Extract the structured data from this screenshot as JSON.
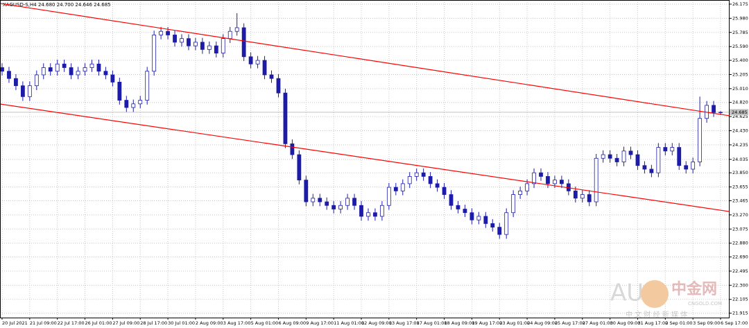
{
  "chart_data": {
    "type": "candlestick",
    "title": "XAGUSD-S,H4  24.680 24.700 24.646 24.685",
    "categories": [
      "20 Jul 2021",
      null,
      null,
      null,
      "21 Jul 09:00",
      null,
      null,
      null,
      "22 Jul 17:00",
      null,
      null,
      null,
      "26 Jul 01:00",
      null,
      null,
      null,
      "27 Jul 09:00",
      null,
      null,
      null,
      "28 Jul 17:00",
      null,
      null,
      null,
      "30 Jul 01:00",
      null,
      null,
      null,
      "2 Aug 09:00",
      null,
      null,
      null,
      "3 Aug 17:00",
      null,
      null,
      null,
      "5 Aug 01:00",
      null,
      null,
      null,
      "6 Aug 09:00",
      null,
      null,
      null,
      "9 Aug 17:00",
      null,
      null,
      null,
      "11 Aug 01:00",
      null,
      null,
      null,
      "12 Aug 09:00",
      null,
      null,
      null,
      "13 Aug 17:00",
      null,
      null,
      null,
      "17 Aug 01:00",
      null,
      null,
      null,
      "18 Aug 09:00",
      null,
      null,
      null,
      "19 Aug 17:00",
      null,
      null,
      null,
      "23 Aug 01:00",
      null,
      null,
      null,
      "24 Aug 09:00",
      null,
      null,
      null,
      "25 Aug 17:00",
      null,
      null,
      null,
      "27 Aug 01:00",
      null,
      null,
      null,
      "30 Aug 09:00",
      null,
      null,
      null,
      "31 Aug 17:00",
      null,
      null,
      null,
      "2 Sep 01:00",
      null,
      null,
      null,
      "3 Sep 09:00",
      null,
      null,
      null,
      "6 Sep 17:00"
    ],
    "open": [
      25.3,
      25.25,
      25.15,
      25.05,
      24.9,
      25.05,
      25.2,
      25.3,
      25.25,
      25.35,
      25.3,
      25.2,
      25.25,
      25.3,
      25.35,
      25.25,
      25.2,
      25.1,
      24.85,
      24.75,
      24.8,
      24.85,
      25.25,
      25.75,
      25.8,
      25.75,
      25.65,
      25.7,
      25.6,
      25.65,
      25.55,
      25.6,
      25.5,
      25.7,
      25.8,
      25.85,
      25.45,
      25.35,
      25.4,
      25.2,
      25.15,
      24.95,
      24.25,
      24.1,
      23.75,
      23.45,
      23.5,
      23.45,
      23.4,
      23.35,
      23.4,
      23.5,
      23.4,
      23.25,
      23.3,
      23.25,
      23.4,
      23.65,
      23.6,
      23.7,
      23.8,
      23.85,
      23.8,
      23.7,
      23.65,
      23.55,
      23.4,
      23.35,
      23.3,
      23.2,
      23.25,
      23.15,
      23.1,
      23.0,
      23.3,
      23.55,
      23.6,
      23.7,
      23.85,
      23.8,
      23.7,
      23.75,
      23.7,
      23.6,
      23.5,
      23.55,
      23.45,
      24.05,
      24.1,
      24.05,
      24.0,
      24.15,
      24.1,
      23.95,
      23.9,
      23.85,
      24.2,
      24.15,
      24.2,
      23.95,
      23.9,
      24.0,
      24.6,
      24.78,
      24.68
    ],
    "high": [
      25.36,
      25.31,
      25.21,
      25.11,
      25.11,
      25.26,
      25.36,
      25.36,
      25.41,
      25.41,
      25.36,
      25.31,
      25.36,
      25.41,
      25.41,
      25.31,
      25.26,
      25.16,
      24.91,
      24.86,
      24.91,
      25.31,
      25.81,
      25.86,
      25.86,
      25.81,
      25.76,
      25.76,
      25.71,
      25.71,
      25.66,
      25.66,
      25.76,
      25.86,
      26.05,
      25.91,
      25.51,
      25.46,
      25.46,
      25.26,
      25.21,
      25.01,
      24.31,
      24.16,
      23.81,
      23.56,
      23.56,
      23.51,
      23.46,
      23.46,
      23.56,
      23.56,
      23.46,
      23.36,
      23.36,
      23.46,
      23.71,
      23.71,
      23.76,
      23.86,
      23.91,
      23.91,
      23.86,
      23.76,
      23.71,
      23.61,
      23.46,
      23.41,
      23.36,
      23.31,
      23.31,
      23.21,
      23.16,
      23.36,
      23.61,
      23.66,
      23.76,
      23.91,
      23.91,
      23.86,
      23.81,
      23.81,
      23.76,
      23.66,
      23.61,
      23.61,
      24.11,
      24.16,
      24.16,
      24.11,
      24.21,
      24.21,
      24.16,
      24.01,
      23.96,
      24.26,
      24.26,
      24.26,
      24.26,
      24.01,
      24.06,
      24.9,
      24.84,
      24.84,
      24.7
    ],
    "low": [
      25.19,
      25.09,
      24.99,
      24.84,
      24.84,
      24.99,
      25.14,
      25.19,
      25.19,
      25.24,
      25.14,
      25.14,
      25.19,
      25.24,
      25.19,
      25.14,
      25.04,
      24.79,
      24.69,
      24.69,
      24.74,
      24.79,
      25.19,
      25.69,
      25.69,
      25.59,
      25.59,
      25.54,
      25.54,
      25.49,
      25.49,
      25.44,
      25.44,
      25.64,
      25.74,
      25.39,
      25.29,
      25.29,
      25.14,
      25.09,
      24.89,
      24.19,
      24.04,
      23.69,
      23.39,
      23.39,
      23.39,
      23.34,
      23.29,
      23.29,
      23.34,
      23.34,
      23.19,
      23.19,
      23.19,
      23.19,
      23.34,
      23.54,
      23.54,
      23.64,
      23.74,
      23.74,
      23.64,
      23.59,
      23.49,
      23.34,
      23.29,
      23.24,
      23.14,
      23.14,
      23.09,
      23.04,
      22.94,
      22.94,
      23.24,
      23.49,
      23.54,
      23.64,
      23.74,
      23.64,
      23.64,
      23.64,
      23.54,
      23.44,
      23.44,
      23.39,
      23.39,
      23.99,
      23.99,
      23.94,
      23.94,
      24.04,
      23.89,
      23.84,
      23.79,
      23.79,
      24.09,
      24.09,
      23.89,
      23.84,
      23.84,
      23.94,
      24.54,
      24.62,
      24.646
    ],
    "close": [
      25.25,
      25.15,
      25.05,
      24.9,
      25.05,
      25.2,
      25.3,
      25.25,
      25.35,
      25.3,
      25.2,
      25.25,
      25.3,
      25.35,
      25.25,
      25.2,
      25.1,
      24.85,
      24.75,
      24.8,
      24.85,
      25.25,
      25.75,
      25.8,
      25.75,
      25.65,
      25.7,
      25.6,
      25.65,
      25.55,
      25.6,
      25.5,
      25.7,
      25.8,
      25.85,
      25.45,
      25.35,
      25.4,
      25.2,
      25.15,
      24.95,
      24.25,
      24.1,
      23.75,
      23.45,
      23.5,
      23.45,
      23.4,
      23.35,
      23.4,
      23.5,
      23.4,
      23.25,
      23.3,
      23.25,
      23.4,
      23.65,
      23.6,
      23.7,
      23.8,
      23.85,
      23.8,
      23.7,
      23.65,
      23.55,
      23.4,
      23.35,
      23.3,
      23.2,
      23.25,
      23.15,
      23.1,
      23.0,
      23.3,
      23.55,
      23.6,
      23.7,
      23.85,
      23.8,
      23.7,
      23.75,
      23.7,
      23.6,
      23.5,
      23.55,
      23.45,
      24.05,
      24.1,
      24.05,
      24.0,
      24.15,
      24.1,
      23.95,
      23.9,
      23.85,
      24.2,
      24.15,
      24.2,
      23.95,
      23.9,
      24.0,
      24.6,
      24.78,
      24.68,
      24.685
    ],
    "up_color": "#ffffff",
    "down_color": "#1c1ca8",
    "wick_color": "#1c1ca8",
    "ylim": [
      21.854,
      26.232
    ],
    "yticks": [
      26.175,
      {
        "value": 25.98,
        "label": "25.980"
      },
      25.785,
      {
        "value": 25.59,
        "label": "25.590"
      },
      {
        "value": 25.4,
        "label": "25.400"
      },
      25.205,
      {
        "value": 25.01,
        "label": "25.010"
      },
      {
        "value": 24.82,
        "label": "24.820"
      },
      24.625,
      {
        "value": 24.43,
        "label": "24.430"
      },
      24.235,
      24.035,
      {
        "value": 23.85,
        "label": "23.850"
      },
      23.655,
      23.465,
      {
        "value": 23.27,
        "label": "23.270"
      },
      23.075,
      {
        "value": 22.88,
        "label": "22.880"
      },
      {
        "value": 22.69,
        "label": "22.690"
      },
      22.495,
      {
        "value": 22.3,
        "label": "22.300"
      },
      22.105,
      21.915
    ],
    "grid": true,
    "last_price": 24.685,
    "trendlines": [
      {
        "color": "#ff0000",
        "values": [
          26.185,
          24.636
        ]
      },
      {
        "color": "#ff0000",
        "values": [
          24.798,
          23.316
        ]
      }
    ],
    "watermark": {
      "big": "AUG",
      "brand": "中金网",
      "site": "CNGOLD.COM",
      "tagline": "中 文 财 经 新 媒 体"
    }
  }
}
